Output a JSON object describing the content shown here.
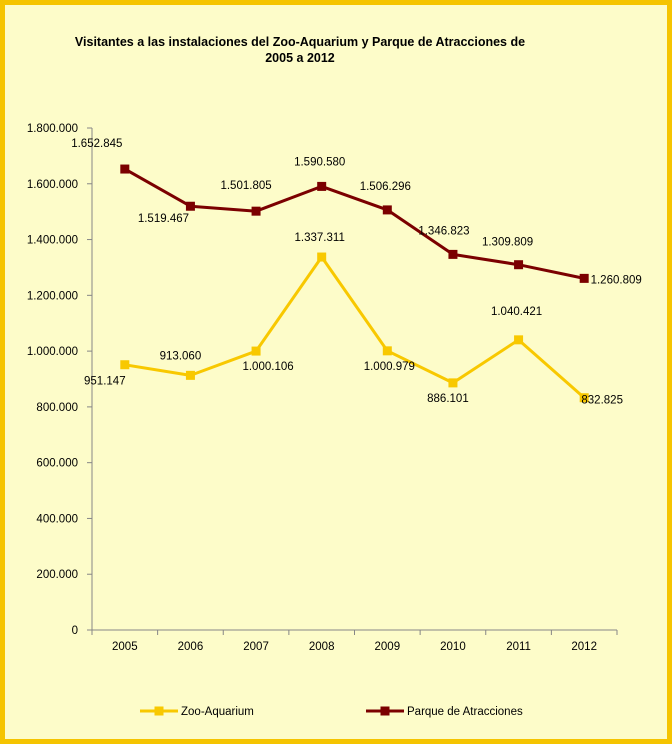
{
  "colors": {
    "frame_border": "#f5c400",
    "background": "#fdfcc9",
    "zoo": "#f8c800",
    "parque": "#7b0000"
  },
  "chart_data": {
    "type": "line",
    "title": "Visitantes a las instalaciones del Zoo-Aquarium y Parque de Atracciones de 2005 a 2012",
    "categories": [
      "2005",
      "2006",
      "2007",
      "2008",
      "2009",
      "2010",
      "2011",
      "2012"
    ],
    "ylim": [
      0,
      1800000
    ],
    "yticks": [
      0,
      200000,
      400000,
      600000,
      800000,
      1000000,
      1200000,
      1400000,
      1600000,
      1800000
    ],
    "ytick_labels": [
      "0",
      "200.000",
      "400.000",
      "600.000",
      "800.000",
      "1.000.000",
      "1.200.000",
      "1.400.000",
      "1.600.000",
      "1.800.000"
    ],
    "grid": false,
    "legend_position": "bottom",
    "series": [
      {
        "name": "Zoo-Aquarium",
        "color": "#f8c800",
        "values": [
          951147,
          913060,
          1000106,
          1337311,
          1000979,
          886101,
          1040421,
          832825
        ],
        "labels": [
          "951.147",
          "913.060",
          "1.000.106",
          "1.337.311",
          "1.000.979",
          "886.101",
          "1.040.421",
          "832.825"
        ]
      },
      {
        "name": "Parque de Atracciones",
        "color": "#7b0000",
        "values": [
          1652845,
          1519467,
          1501805,
          1590580,
          1506296,
          1346823,
          1309809,
          1260809
        ],
        "labels": [
          "1.652.845",
          "1.519.467",
          "1.501.805",
          "1.590.580",
          "1.506.296",
          "1.346.823",
          "1.309.809",
          "1.260.809"
        ]
      }
    ]
  }
}
